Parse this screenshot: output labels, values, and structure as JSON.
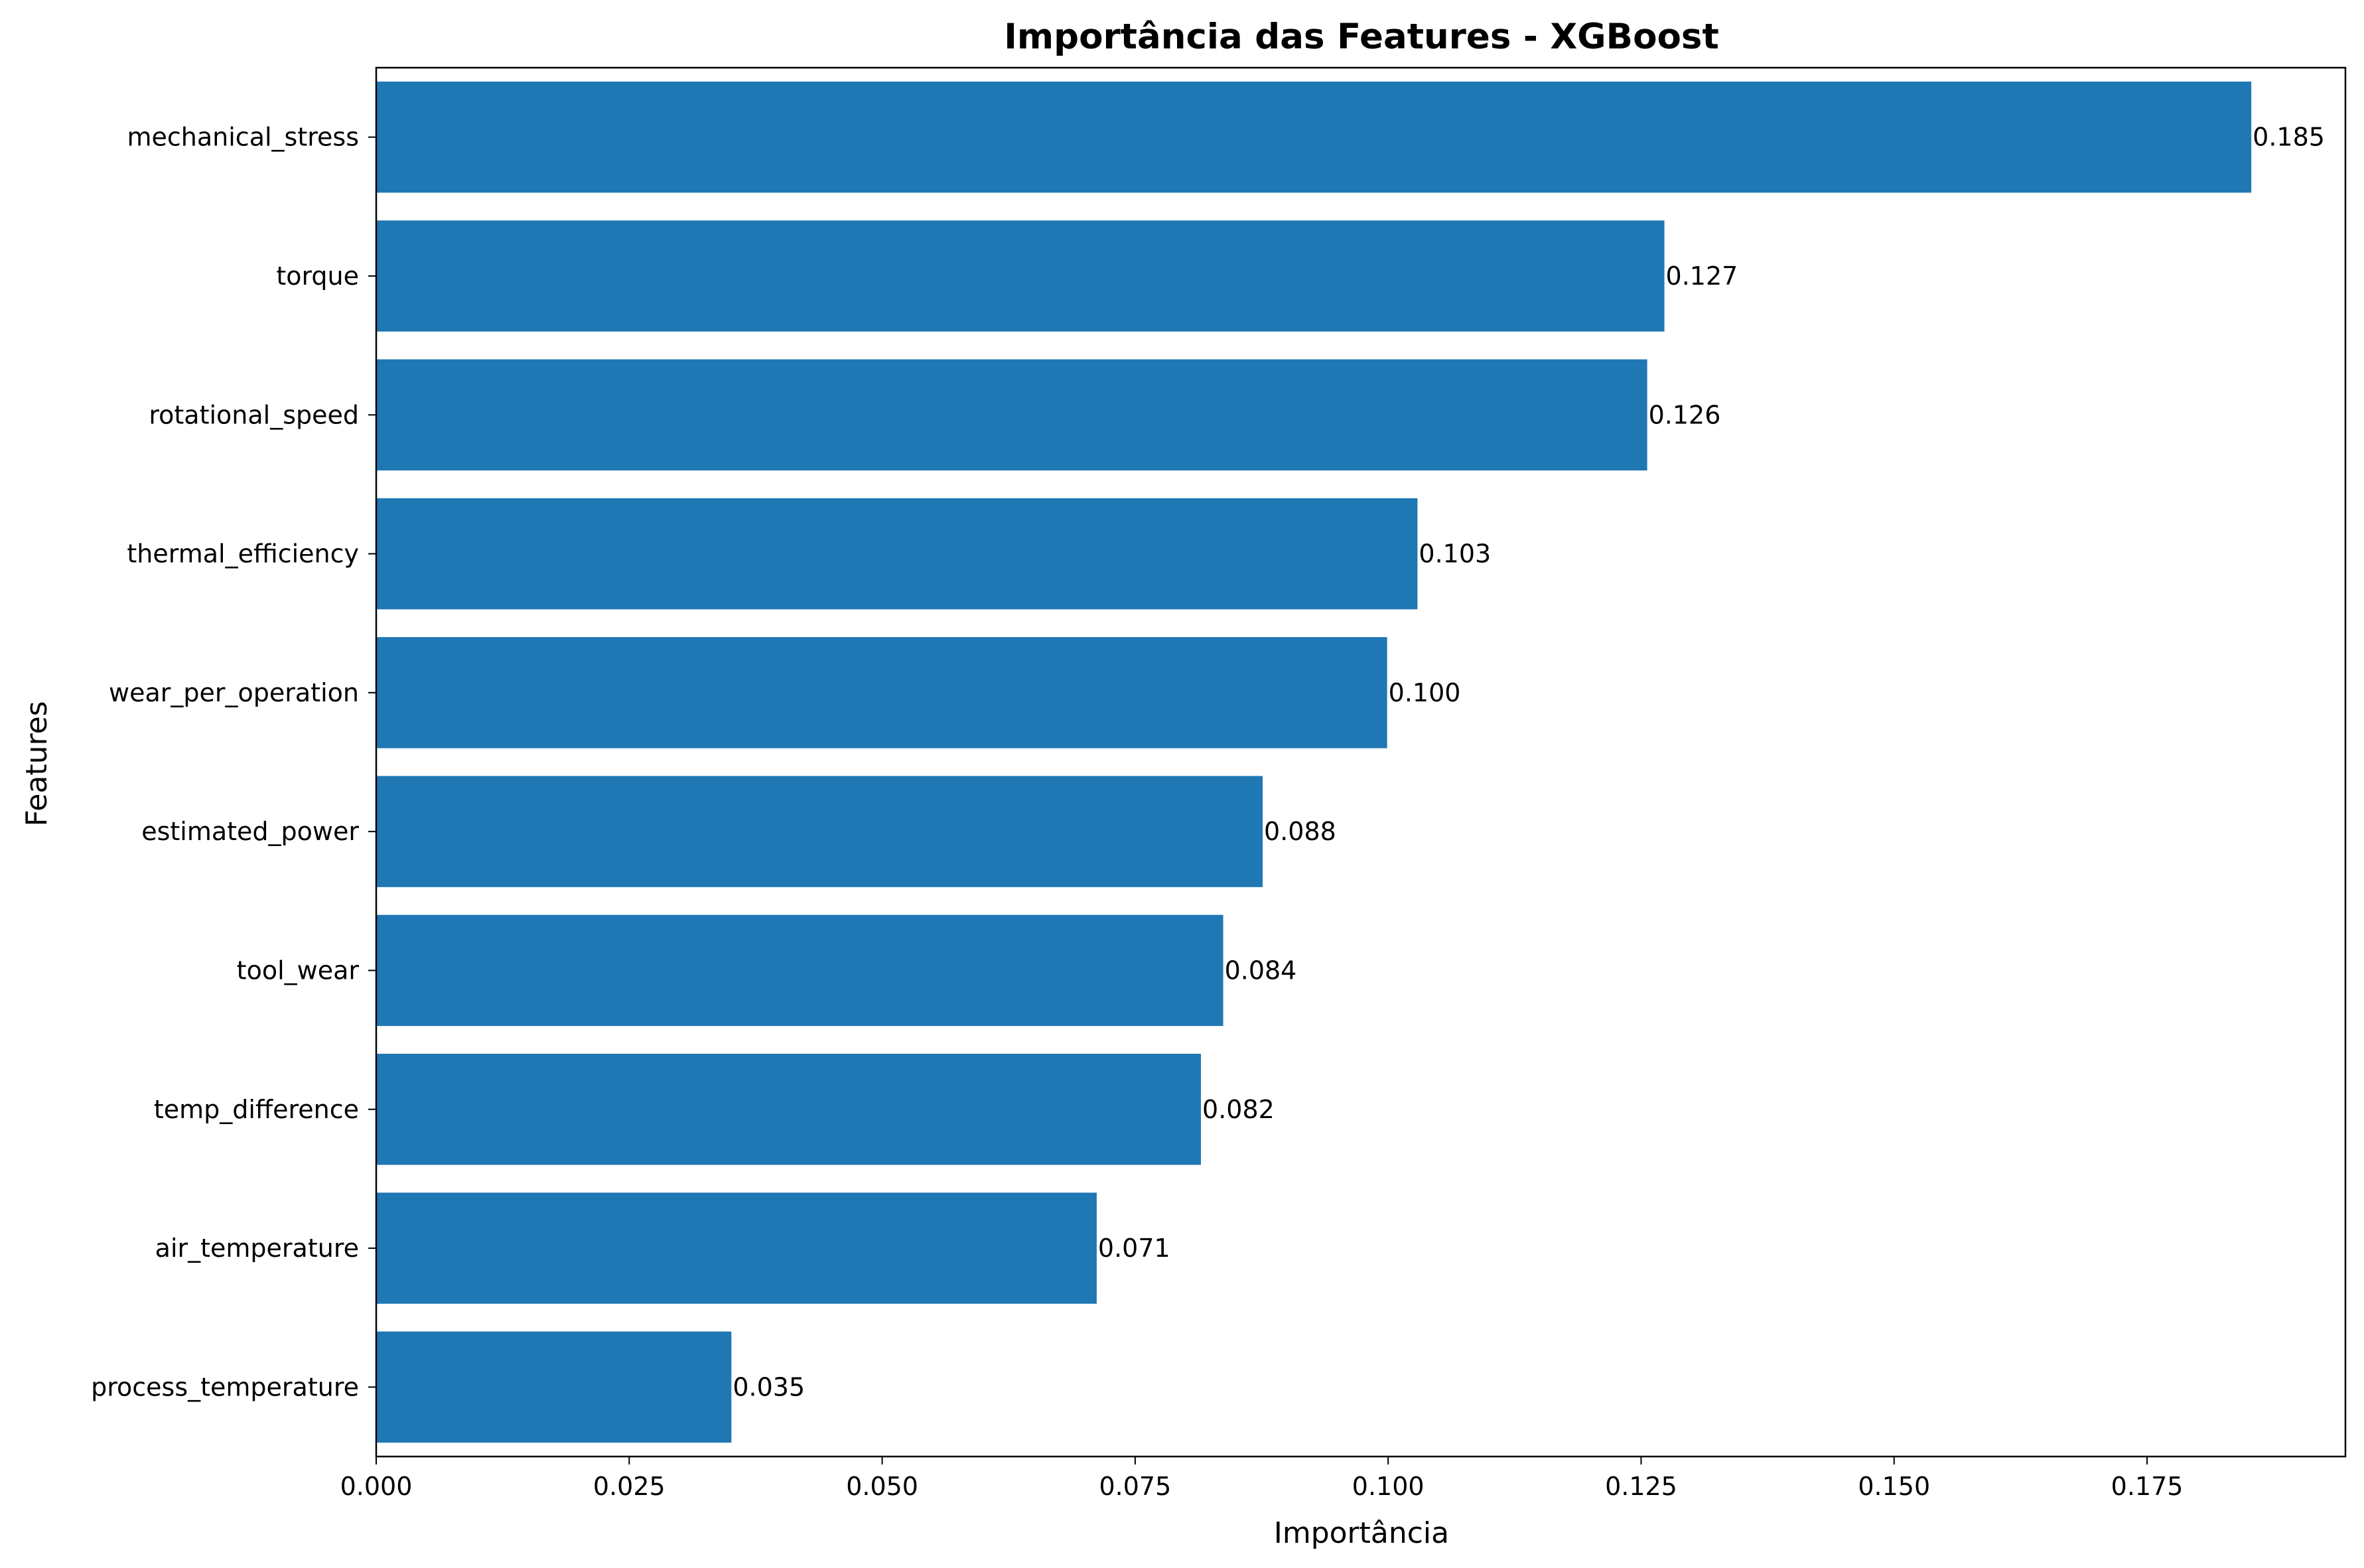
{
  "chart_data": {
    "type": "bar",
    "orientation": "horizontal",
    "title": "Importância das Features - XGBoost",
    "xlabel": "Importância",
    "ylabel": "Features",
    "categories": [
      "mechanical_stress",
      "torque",
      "rotational_speed",
      "thermal_efficiency",
      "wear_per_operation",
      "estimated_power",
      "tool_wear",
      "temp_difference",
      "air_temperature",
      "process_temperature"
    ],
    "values": [
      0.1853,
      0.1273,
      0.1256,
      0.1029,
      0.0999,
      0.0876,
      0.0837,
      0.0815,
      0.0712,
      0.0351
    ],
    "value_labels": [
      "0.185",
      "0.127",
      "0.126",
      "0.103",
      "0.100",
      "0.088",
      "0.084",
      "0.082",
      "0.071",
      "0.035"
    ],
    "xlim": [
      0,
      0.1946
    ],
    "xticks": [
      0.0,
      0.025,
      0.05,
      0.075,
      0.1,
      0.125,
      0.15,
      0.175
    ],
    "xtick_labels": [
      "0.000",
      "0.025",
      "0.050",
      "0.075",
      "0.100",
      "0.125",
      "0.150",
      "0.175"
    ],
    "bar_color": "#1f77b4",
    "grid": false,
    "legend": false
  }
}
